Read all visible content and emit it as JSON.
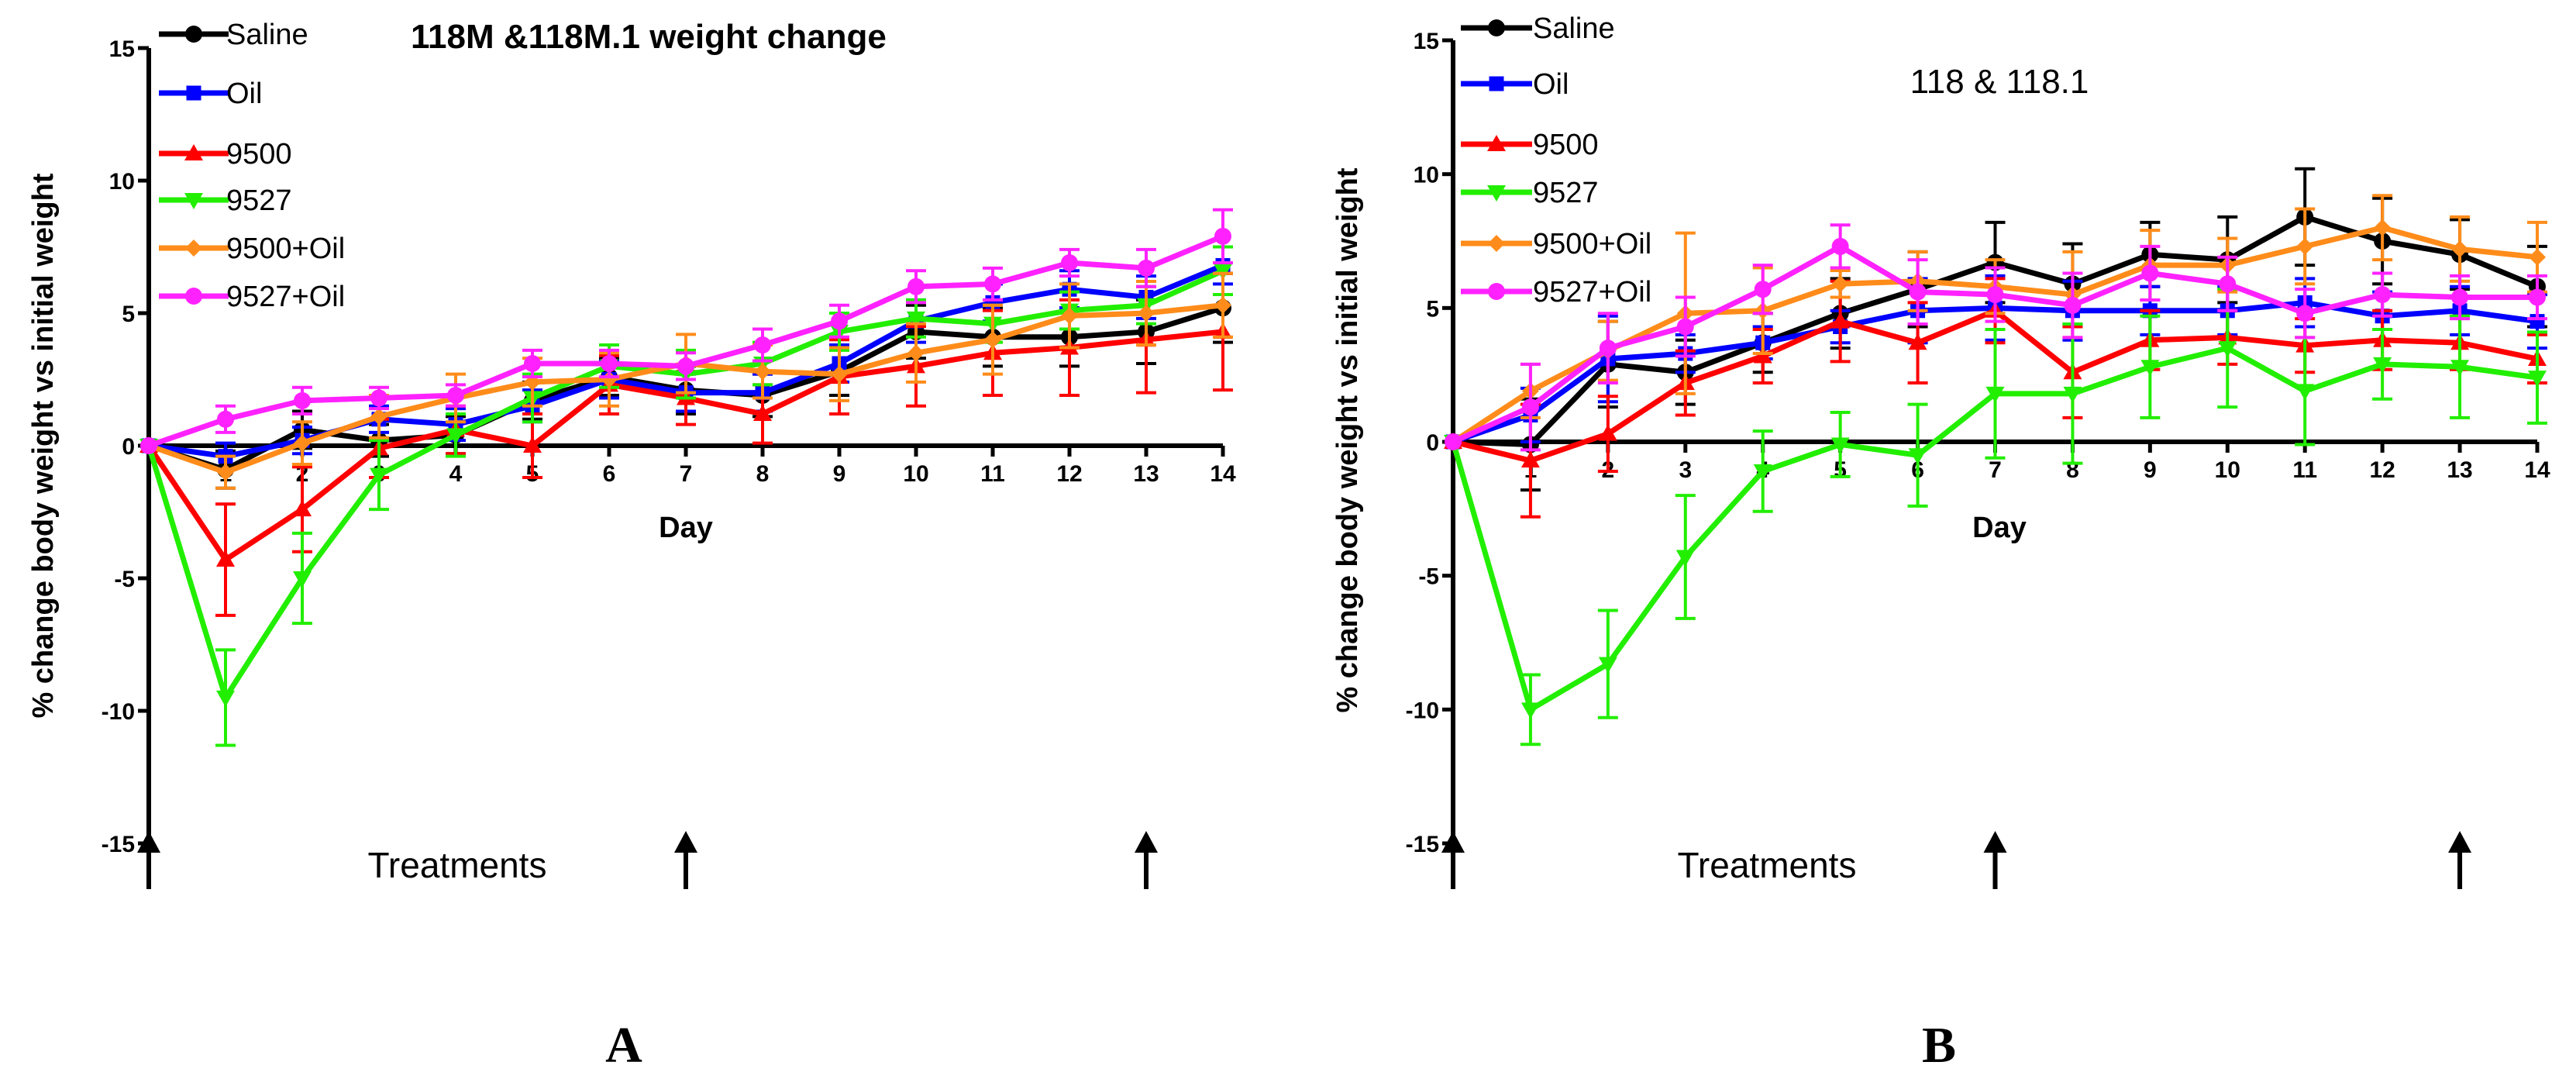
{
  "chart_data": [
    {
      "panel_label": "A",
      "type": "line",
      "title": "118M &118M.1 weight change",
      "title_bold": true,
      "xlabel": "Day",
      "ylabel": "% change body weight vs initial weight",
      "xlim": [
        0,
        14
      ],
      "ylim": [
        -15,
        15
      ],
      "xticks": [
        1,
        2,
        3,
        4,
        5,
        6,
        7,
        8,
        9,
        10,
        11,
        12,
        13,
        14
      ],
      "yticks": [
        -15,
        -10,
        -5,
        0,
        5,
        10,
        15
      ],
      "grid": false,
      "legend_position": "top-left",
      "treatment_label": "Treatments",
      "treatment_days": [
        0,
        7,
        13
      ],
      "series": [
        {
          "name": "Saline",
          "color": "#000000",
          "marker": "circle",
          "x": [
            0,
            1,
            2,
            3,
            4,
            5,
            6,
            7,
            8,
            9,
            10,
            11,
            12,
            13,
            14
          ],
          "y": [
            0,
            -0.9,
            0.6,
            0.2,
            0.4,
            1.7,
            2.6,
            2.1,
            1.9,
            2.8,
            4.3,
            4.1,
            4.1,
            4.3,
            5.2
          ],
          "err": [
            0,
            0.7,
            0.7,
            0.6,
            0.7,
            0.7,
            0.7,
            0.9,
            0.8,
            0.9,
            1.0,
            1.1,
            1.1,
            1.2,
            1.3
          ]
        },
        {
          "name": "Oil",
          "color": "#0000ff",
          "marker": "square",
          "x": [
            0,
            1,
            2,
            3,
            4,
            5,
            6,
            7,
            8,
            9,
            10,
            11,
            12,
            13,
            14
          ],
          "y": [
            0,
            -0.4,
            0.2,
            1.0,
            0.8,
            1.5,
            2.5,
            2.0,
            2.0,
            3.1,
            4.7,
            5.4,
            5.9,
            5.6,
            6.8
          ],
          "err": [
            0,
            0.5,
            0.5,
            0.5,
            0.6,
            0.6,
            0.7,
            0.7,
            0.7,
            0.7,
            0.8,
            0.7,
            0.7,
            0.8,
            0.7
          ]
        },
        {
          "name": "9500",
          "color": "#ff0000",
          "marker": "triangle-up",
          "x": [
            0,
            1,
            2,
            3,
            4,
            5,
            6,
            7,
            8,
            9,
            10,
            11,
            12,
            13,
            14
          ],
          "y": [
            0,
            -4.3,
            -2.4,
            -0.1,
            0.6,
            0.0,
            2.3,
            1.8,
            1.2,
            2.6,
            3.0,
            3.5,
            3.7,
            4.0,
            4.3
          ],
          "err": [
            0,
            2.1,
            1.6,
            1.1,
            0.9,
            1.2,
            1.1,
            1.0,
            1.1,
            1.4,
            1.5,
            1.6,
            1.8,
            2.0,
            2.2
          ]
        },
        {
          "name": "9527",
          "color": "#22ee00",
          "marker": "triangle-down",
          "x": [
            0,
            1,
            2,
            3,
            4,
            5,
            6,
            7,
            8,
            9,
            10,
            11,
            12,
            13,
            14
          ],
          "y": [
            0,
            -9.5,
            -5.0,
            -1.1,
            0.4,
            1.8,
            3.0,
            2.7,
            3.1,
            4.3,
            4.8,
            4.6,
            5.1,
            5.3,
            6.6
          ],
          "err": [
            0,
            1.8,
            1.7,
            1.3,
            0.8,
            0.9,
            0.8,
            0.9,
            0.8,
            0.7,
            0.7,
            0.7,
            0.7,
            0.7,
            0.9
          ]
        },
        {
          "name": "9500+Oil",
          "color": "#ff8c1a",
          "marker": "diamond",
          "x": [
            0,
            1,
            2,
            3,
            4,
            5,
            6,
            7,
            8,
            9,
            10,
            11,
            12,
            13,
            14
          ],
          "y": [
            0,
            -1.0,
            0.1,
            1.1,
            1.8,
            2.4,
            2.5,
            3.1,
            2.8,
            2.7,
            3.5,
            4.0,
            4.9,
            5.0,
            5.3
          ],
          "err": [
            0,
            0.6,
            0.8,
            0.8,
            0.9,
            0.9,
            1.0,
            1.1,
            1.0,
            1.0,
            1.1,
            1.3,
            1.2,
            1.2,
            1.2
          ]
        },
        {
          "name": "9527+Oil",
          "color": "#ff22ff",
          "marker": "circle",
          "x": [
            0,
            1,
            2,
            3,
            4,
            5,
            6,
            7,
            8,
            9,
            10,
            11,
            12,
            13,
            14
          ],
          "y": [
            0,
            1.0,
            1.7,
            1.8,
            1.9,
            3.1,
            3.1,
            3.0,
            3.8,
            4.7,
            6.0,
            6.1,
            6.9,
            6.7,
            7.9
          ],
          "err": [
            0,
            0.5,
            0.5,
            0.4,
            0.4,
            0.5,
            0.5,
            0.5,
            0.6,
            0.6,
            0.6,
            0.6,
            0.5,
            0.7,
            1.0
          ]
        }
      ]
    },
    {
      "panel_label": "B",
      "type": "line",
      "title": "118 & 118.1",
      "title_bold": false,
      "xlabel": "Day",
      "ylabel": "% change body weight vs initial weight",
      "xlim": [
        0,
        14
      ],
      "ylim": [
        -15,
        15
      ],
      "xticks": [
        1,
        2,
        3,
        4,
        5,
        6,
        7,
        8,
        9,
        10,
        11,
        12,
        13,
        14
      ],
      "yticks": [
        -15,
        -10,
        -5,
        0,
        5,
        10,
        15
      ],
      "grid": false,
      "legend_position": "top-left",
      "treatment_label": "Treatments",
      "treatment_days": [
        0,
        7,
        13
      ],
      "series": [
        {
          "name": "Saline",
          "color": "#000000",
          "marker": "circle",
          "x": [
            0,
            1,
            2,
            3,
            4,
            5,
            6,
            7,
            8,
            9,
            10,
            11,
            12,
            13,
            14
          ],
          "y": [
            0,
            -0.1,
            2.9,
            2.6,
            3.7,
            4.8,
            5.7,
            6.7,
            5.9,
            7.0,
            6.8,
            8.4,
            7.5,
            7.0,
            5.8
          ],
          "err": [
            0,
            1.7,
            1.6,
            1.2,
            1.1,
            1.3,
            1.4,
            1.5,
            1.5,
            1.2,
            1.6,
            1.8,
            1.6,
            1.3,
            1.5
          ]
        },
        {
          "name": "Oil",
          "color": "#0000ff",
          "marker": "square",
          "x": [
            0,
            1,
            2,
            3,
            4,
            5,
            6,
            7,
            8,
            9,
            10,
            11,
            12,
            13,
            14
          ],
          "y": [
            0,
            1.0,
            3.1,
            3.3,
            3.7,
            4.3,
            4.9,
            5.0,
            4.9,
            4.9,
            4.9,
            5.2,
            4.7,
            4.9,
            4.5
          ],
          "err": [
            0,
            1.0,
            1.6,
            0.7,
            0.6,
            0.6,
            1.2,
            1.2,
            1.1,
            0.9,
            0.9,
            0.9,
            0.9,
            0.9,
            1.0
          ]
        },
        {
          "name": "9500",
          "color": "#ff0000",
          "marker": "triangle-up",
          "x": [
            0,
            1,
            2,
            3,
            4,
            5,
            6,
            7,
            8,
            9,
            10,
            11,
            12,
            13,
            14
          ],
          "y": [
            0,
            -0.7,
            0.3,
            2.2,
            3.2,
            4.5,
            3.7,
            4.9,
            2.6,
            3.8,
            3.9,
            3.6,
            3.8,
            3.7,
            3.1
          ],
          "err": [
            0,
            2.1,
            1.4,
            1.2,
            1.0,
            1.5,
            1.5,
            1.2,
            1.7,
            1.1,
            1.0,
            1.0,
            1.1,
            1.0,
            0.9
          ]
        },
        {
          "name": "9527",
          "color": "#22ee00",
          "marker": "triangle-down",
          "x": [
            0,
            1,
            2,
            3,
            4,
            5,
            6,
            7,
            8,
            9,
            10,
            11,
            12,
            13,
            14
          ],
          "y": [
            0,
            -10.0,
            -8.3,
            -4.3,
            -1.1,
            -0.1,
            -0.5,
            1.8,
            1.8,
            2.8,
            3.5,
            1.9,
            2.9,
            2.8,
            2.4
          ],
          "err": [
            0,
            1.3,
            2.0,
            2.3,
            1.5,
            1.2,
            1.9,
            2.4,
            2.6,
            1.9,
            2.2,
            2.0,
            1.3,
            1.9,
            1.7
          ]
        },
        {
          "name": "9500+Oil",
          "color": "#ff8c1a",
          "marker": "diamond",
          "x": [
            0,
            1,
            2,
            3,
            4,
            5,
            6,
            7,
            8,
            9,
            10,
            11,
            12,
            13,
            14
          ],
          "y": [
            0,
            1.9,
            3.4,
            4.8,
            4.9,
            5.9,
            6.0,
            5.8,
            5.5,
            6.6,
            6.6,
            7.3,
            8.0,
            7.2,
            6.9
          ],
          "err": [
            0,
            1.0,
            1.1,
            3.0,
            1.6,
            0.5,
            1.1,
            1.0,
            1.6,
            1.3,
            1.0,
            1.4,
            1.2,
            1.2,
            1.3
          ]
        },
        {
          "name": "9527+Oil",
          "color": "#ff22ff",
          "marker": "circle",
          "x": [
            0,
            1,
            2,
            3,
            4,
            5,
            6,
            7,
            8,
            9,
            10,
            11,
            12,
            13,
            14
          ],
          "y": [
            0,
            1.3,
            3.5,
            4.3,
            5.7,
            7.3,
            5.6,
            5.5,
            5.1,
            6.3,
            5.9,
            4.8,
            5.5,
            5.4,
            5.4
          ],
          "err": [
            0,
            1.6,
            1.3,
            1.1,
            0.9,
            0.8,
            1.2,
            1.0,
            1.2,
            1.0,
            1.0,
            0.9,
            0.8,
            0.8,
            0.8
          ]
        }
      ]
    }
  ]
}
